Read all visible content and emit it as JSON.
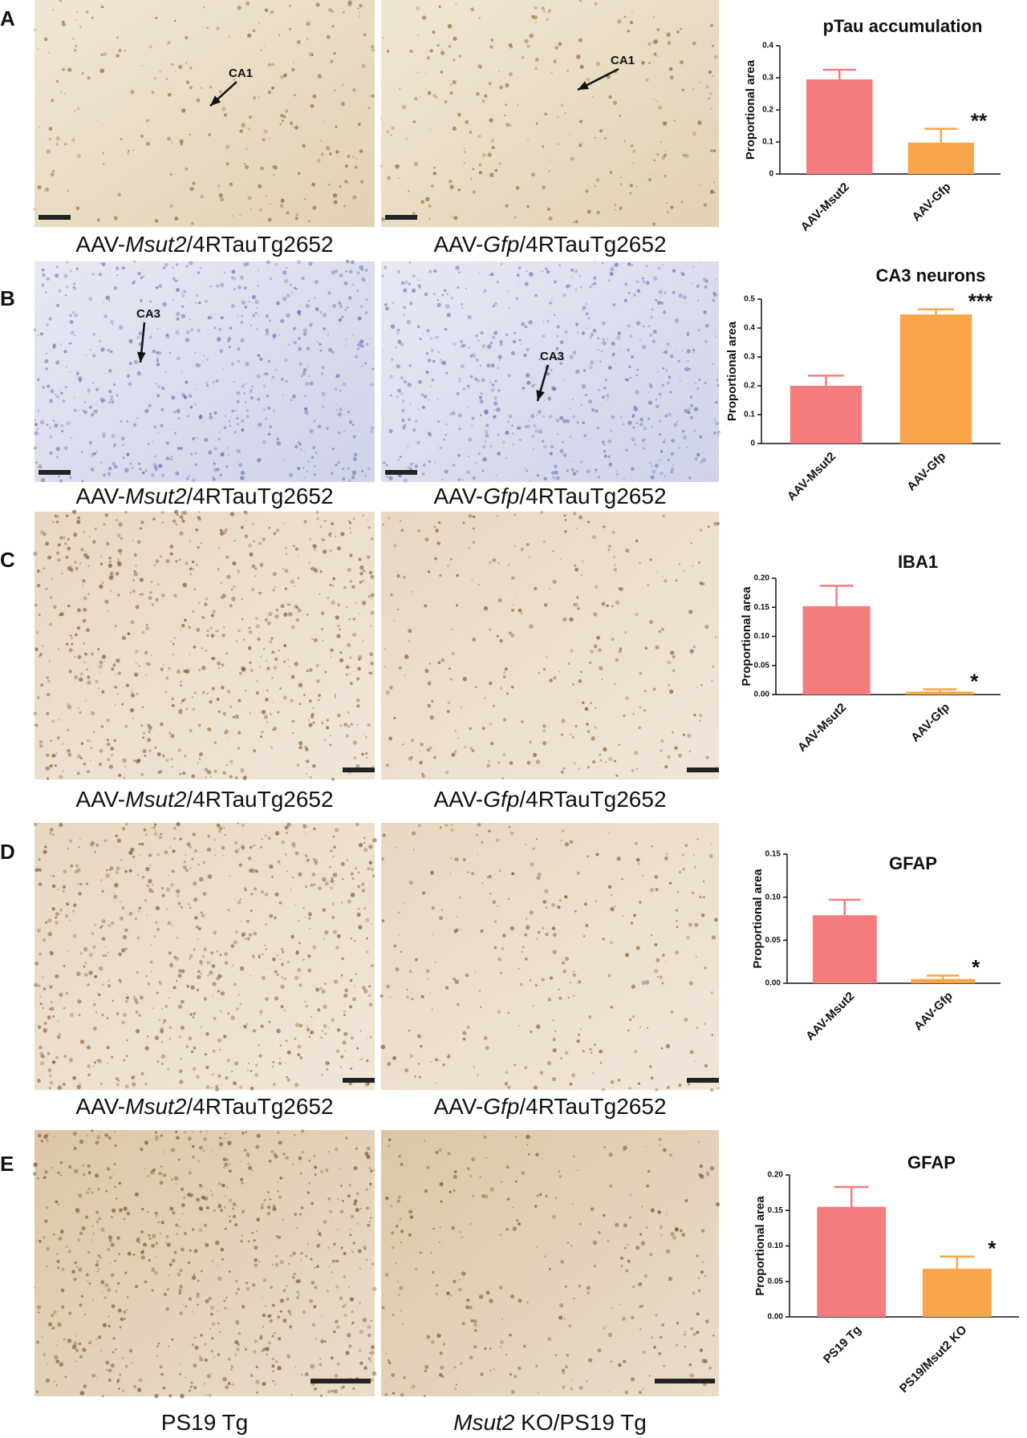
{
  "panels": [
    {
      "letter": "A",
      "images": [
        {
          "caption": [
            {
              "text": "AAV-",
              "italic": false
            },
            {
              "text": "Msut2",
              "italic": true
            },
            {
              "text": "/4RTauTg2652",
              "italic": false
            }
          ],
          "annotation": "CA1"
        },
        {
          "caption": [
            {
              "text": "AAV-",
              "italic": false
            },
            {
              "text": "Gfp",
              "italic": true
            },
            {
              "text": "/4RTauTg2652",
              "italic": false
            }
          ],
          "annotation": "CA1"
        }
      ]
    },
    {
      "letter": "B",
      "images": [
        {
          "caption": [
            {
              "text": "AAV-",
              "italic": false
            },
            {
              "text": "Msut2",
              "italic": true
            },
            {
              "text": "/4RTauTg2652",
              "italic": false
            }
          ],
          "annotation": "CA3"
        },
        {
          "caption": [
            {
              "text": "AAV-",
              "italic": false
            },
            {
              "text": "Gfp",
              "italic": true
            },
            {
              "text": "/4RTauTg2652",
              "italic": false
            }
          ],
          "annotation": "CA3"
        }
      ]
    },
    {
      "letter": "C",
      "images": [
        {
          "caption": [
            {
              "text": "AAV-",
              "italic": false
            },
            {
              "text": "Msut2",
              "italic": true
            },
            {
              "text": "/4RTauTg2652",
              "italic": false
            }
          ]
        },
        {
          "caption": [
            {
              "text": "AAV-",
              "italic": false
            },
            {
              "text": "Gfp",
              "italic": true
            },
            {
              "text": "/4RTauTg2652",
              "italic": false
            }
          ]
        }
      ]
    },
    {
      "letter": "D",
      "images": [
        {
          "caption": [
            {
              "text": "AAV-",
              "italic": false
            },
            {
              "text": "Msut2",
              "italic": true
            },
            {
              "text": "/4RTauTg2652",
              "italic": false
            }
          ]
        },
        {
          "caption": [
            {
              "text": "AAV-",
              "italic": false
            },
            {
              "text": "Gfp",
              "italic": true
            },
            {
              "text": "/4RTauTg2652",
              "italic": false
            }
          ]
        }
      ]
    },
    {
      "letter": "E",
      "images": [
        {
          "caption": [
            {
              "text": "PS19 Tg",
              "italic": false
            }
          ]
        },
        {
          "caption": [
            {
              "text": "Msut2",
              "italic": true
            },
            {
              "text": " KO/PS19 Tg",
              "italic": false
            }
          ]
        }
      ]
    }
  ],
  "chart_data": [
    {
      "type": "bar",
      "title": "pTau  accumulation",
      "y_label": "Proportional area",
      "categories": [
        "AAV-Msut2",
        "AAV-Gfp"
      ],
      "values": [
        0.295,
        0.098
      ],
      "errors": [
        0.03,
        0.043
      ],
      "significance": [
        null,
        "**"
      ],
      "colors": [
        "#f47c7c",
        "#f9a54a"
      ],
      "ylim": [
        0,
        0.4
      ],
      "yticks": [
        0,
        0.1,
        0.2,
        0.3,
        0.4
      ]
    },
    {
      "type": "bar",
      "title": "CA3 neurons",
      "y_label": "Proportional area",
      "categories": [
        "AAV-Msut2",
        "AAV-Gfp"
      ],
      "values": [
        0.2,
        0.447
      ],
      "errors": [
        0.035,
        0.018
      ],
      "significance": [
        null,
        "***"
      ],
      "colors": [
        "#f47c7c",
        "#f9a54a"
      ],
      "ylim": [
        0,
        0.5
      ],
      "yticks": [
        0,
        0.1,
        0.2,
        0.3,
        0.4,
        0.5
      ]
    },
    {
      "type": "bar",
      "title": "IBA1",
      "y_label": "Proportional area",
      "categories": [
        "AAV-Msut2",
        "AAV-Gfp"
      ],
      "values": [
        0.152,
        0.005
      ],
      "errors": [
        0.035,
        0.004
      ],
      "significance": [
        null,
        "*"
      ],
      "colors": [
        "#f47c7c",
        "#f9a54a"
      ],
      "ylim": [
        0,
        0.2
      ],
      "yticks": [
        {
          "value": 0,
          "label": "0.00"
        },
        {
          "value": 0.05,
          "label": "0.05"
        },
        {
          "value": 0.1,
          "label": "0.10"
        },
        {
          "value": 0.15,
          "label": "0.15"
        },
        {
          "value": 0.2,
          "label": "0.20"
        }
      ]
    },
    {
      "type": "bar",
      "title": "GFAP",
      "y_label": "Proportional area",
      "categories": [
        "AAV-Msut2",
        "AAV-Gfp"
      ],
      "values": [
        0.079,
        0.005
      ],
      "errors": [
        0.018,
        0.004
      ],
      "significance": [
        null,
        "*"
      ],
      "colors": [
        "#f47c7c",
        "#f9a54a"
      ],
      "ylim": [
        0,
        0.15
      ],
      "yticks": [
        {
          "value": 0,
          "label": "0.00"
        },
        {
          "value": 0.05,
          "label": "0.05"
        },
        {
          "value": 0.1,
          "label": "0.10"
        },
        {
          "value": 0.15,
          "label": "0.15"
        }
      ]
    },
    {
      "type": "bar",
      "title": "GFAP",
      "y_label": "Proportional area",
      "categories": [
        "PS19 Tg",
        "PS19/Msut2 KO"
      ],
      "values": [
        0.155,
        0.068
      ],
      "errors": [
        0.028,
        0.017
      ],
      "significance": [
        null,
        "*"
      ],
      "colors": [
        "#f47c7c",
        "#f9a54a"
      ],
      "ylim": [
        0,
        0.2
      ],
      "yticks": [
        {
          "value": 0,
          "label": "0.00"
        },
        {
          "value": 0.05,
          "label": "0.05"
        },
        {
          "value": 0.1,
          "label": "0.10"
        },
        {
          "value": 0.15,
          "label": "0.15"
        },
        {
          "value": 0.2,
          "label": "0.20"
        }
      ]
    }
  ]
}
